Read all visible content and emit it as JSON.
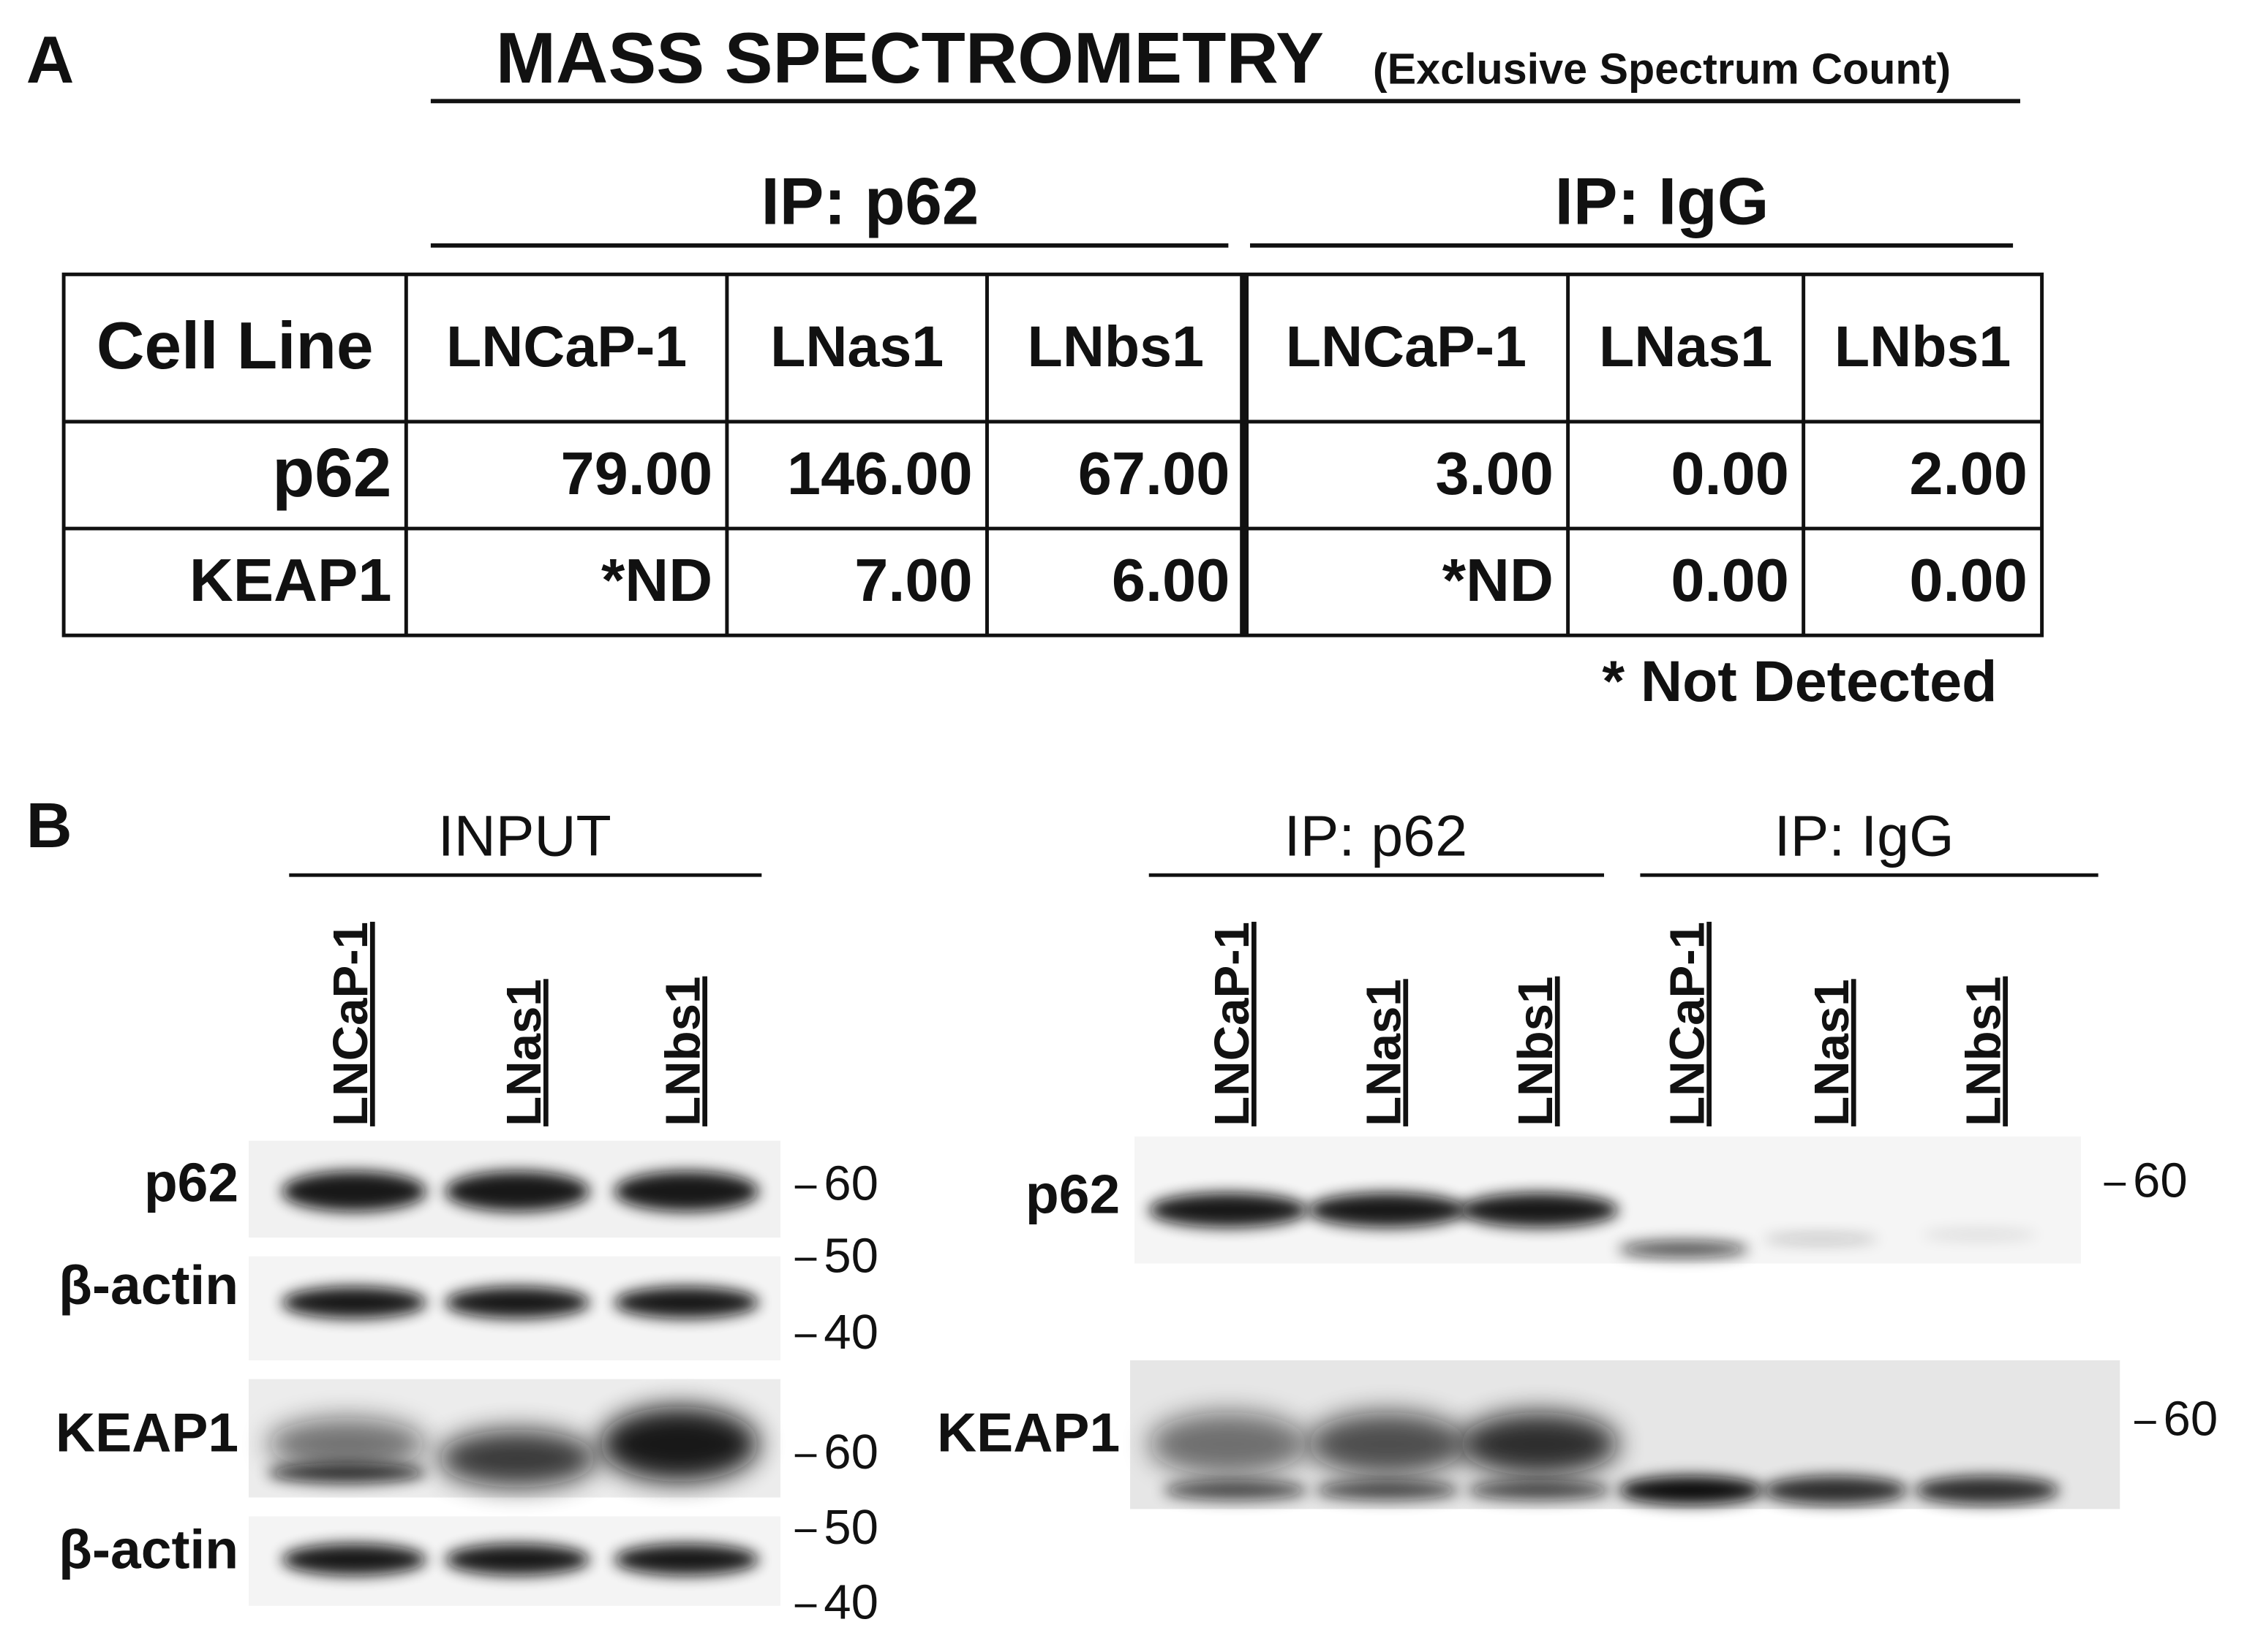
{
  "panel_a": {
    "label": "A",
    "title": "MASS SPECTROMETRY",
    "subtitle": "(Exclusive Spectrum Count)",
    "groups": [
      "IP: p62",
      "IP: IgG"
    ],
    "table": {
      "header": [
        "Cell Line",
        "LNCaP-1",
        "LNas1",
        "LNbs1",
        "LNCaP-1",
        "LNas1",
        "LNbs1"
      ],
      "rows": [
        [
          "p62",
          "79.00",
          "146.00",
          "67.00",
          "3.00",
          "0.00",
          "2.00"
        ],
        [
          "KEAP1",
          "*ND",
          "7.00",
          "6.00",
          "*ND",
          "0.00",
          "0.00"
        ]
      ]
    },
    "footnote": "* Not Detected"
  },
  "panel_b": {
    "label": "B",
    "input": {
      "title": "INPUT",
      "lanes": [
        "LNCaP-1",
        "LNas1",
        "LNbs1"
      ],
      "blots": [
        "p62",
        "β-actin",
        "KEAP1",
        "β-actin"
      ],
      "markers": [
        "60",
        "50",
        "40",
        "60",
        "50",
        "40"
      ]
    },
    "ip": {
      "groups": [
        "IP: p62",
        "IP: IgG"
      ],
      "lanes": [
        "LNCaP-1",
        "LNas1",
        "LNbs1",
        "LNCaP-1",
        "LNas1",
        "LNbs1"
      ],
      "blots": [
        "p62",
        "KEAP1"
      ],
      "markers": [
        "60",
        "60"
      ]
    }
  }
}
